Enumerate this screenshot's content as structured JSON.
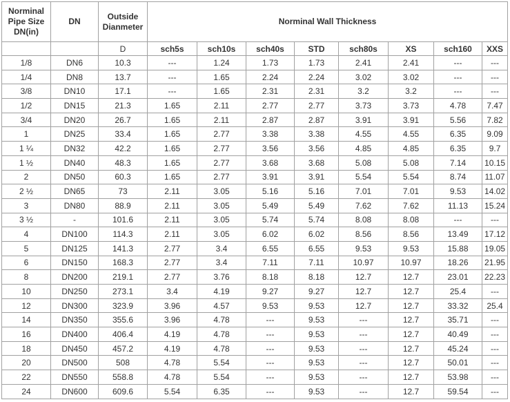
{
  "table": {
    "header": [
      "Norminal Pipe Size DN(in)",
      "DN",
      "Outside Dianmeter",
      "Norminal Wall Thickness"
    ],
    "subheader": [
      "D",
      "sch5s",
      "sch10s",
      "sch40s",
      "STD",
      "sch80s",
      "XS",
      "sch160",
      "XXS"
    ],
    "rows": [
      [
        "1/8",
        "DN6",
        "10.3",
        "---",
        "1.24",
        "1.73",
        "1.73",
        "2.41",
        "2.41",
        "---",
        "---"
      ],
      [
        "1/4",
        "DN8",
        "13.7",
        "---",
        "1.65",
        "2.24",
        "2.24",
        "3.02",
        "3.02",
        "---",
        "---"
      ],
      [
        "3/8",
        "DN10",
        "17.1",
        "---",
        "1.65",
        "2.31",
        "2.31",
        "3.2",
        "3.2",
        "---",
        "---"
      ],
      [
        "1/2",
        "DN15",
        "21.3",
        "1.65",
        "2.11",
        "2.77",
        "2.77",
        "3.73",
        "3.73",
        "4.78",
        "7.47"
      ],
      [
        "3/4",
        "DN20",
        "26.7",
        "1.65",
        "2.11",
        "2.87",
        "2.87",
        "3.91",
        "3.91",
        "5.56",
        "7.82"
      ],
      [
        "1",
        "DN25",
        "33.4",
        "1.65",
        "2.77",
        "3.38",
        "3.38",
        "4.55",
        "4.55",
        "6.35",
        "9.09"
      ],
      [
        "1 ¼",
        "DN32",
        "42.2",
        "1.65",
        "2.77",
        "3.56",
        "3.56",
        "4.85",
        "4.85",
        "6.35",
        "9.7"
      ],
      [
        "1 ½",
        "DN40",
        "48.3",
        "1.65",
        "2.77",
        "3.68",
        "3.68",
        "5.08",
        "5.08",
        "7.14",
        "10.15"
      ],
      [
        "2",
        "DN50",
        "60.3",
        "1.65",
        "2.77",
        "3.91",
        "3.91",
        "5.54",
        "5.54",
        "8.74",
        "11.07"
      ],
      [
        "2 ½",
        "DN65",
        "73",
        "2.11",
        "3.05",
        "5.16",
        "5.16",
        "7.01",
        "7.01",
        "9.53",
        "14.02"
      ],
      [
        "3",
        "DN80",
        "88.9",
        "2.11",
        "3.05",
        "5.49",
        "5.49",
        "7.62",
        "7.62",
        "11.13",
        "15.24"
      ],
      [
        "3 ½",
        "-",
        "101.6",
        "2.11",
        "3.05",
        "5.74",
        "5.74",
        "8.08",
        "8.08",
        "---",
        "---"
      ],
      [
        "4",
        "DN100",
        "114.3",
        "2.11",
        "3.05",
        "6.02",
        "6.02",
        "8.56",
        "8.56",
        "13.49",
        "17.12"
      ],
      [
        "5",
        "DN125",
        "141.3",
        "2.77",
        "3.4",
        "6.55",
        "6.55",
        "9.53",
        "9.53",
        "15.88",
        "19.05"
      ],
      [
        "6",
        "DN150",
        "168.3",
        "2.77",
        "3.4",
        "7.11",
        "7.11",
        "10.97",
        "10.97",
        "18.26",
        "21.95"
      ],
      [
        "8",
        "DN200",
        "219.1",
        "2.77",
        "3.76",
        "8.18",
        "8.18",
        "12.7",
        "12.7",
        "23.01",
        "22.23"
      ],
      [
        "10",
        "DN250",
        "273.1",
        "3.4",
        "4.19",
        "9.27",
        "9.27",
        "12.7",
        "12.7",
        "25.4",
        "---"
      ],
      [
        "12",
        "DN300",
        "323.9",
        "3.96",
        "4.57",
        "9.53",
        "9.53",
        "12.7",
        "12.7",
        "33.32",
        "25.4"
      ],
      [
        "14",
        "DN350",
        "355.6",
        "3.96",
        "4.78",
        "---",
        "9.53",
        "---",
        "12.7",
        "35.71",
        "---"
      ],
      [
        "16",
        "DN400",
        "406.4",
        "4.19",
        "4.78",
        "---",
        "9.53",
        "---",
        "12.7",
        "40.49",
        "---"
      ],
      [
        "18",
        "DN450",
        "457.2",
        "4.19",
        "4.78",
        "---",
        "9.53",
        "---",
        "12.7",
        "45.24",
        "---"
      ],
      [
        "20",
        "DN500",
        "508",
        "4.78",
        "5.54",
        "---",
        "9.53",
        "---",
        "12.7",
        "50.01",
        "---"
      ],
      [
        "22",
        "DN550",
        "558.8",
        "4.78",
        "5.54",
        "---",
        "9.53",
        "---",
        "12.7",
        "53.98",
        "---"
      ],
      [
        "24",
        "DN600",
        "609.6",
        "5.54",
        "6.35",
        "---",
        "9.53",
        "---",
        "12.7",
        "59.54",
        "---"
      ]
    ]
  }
}
